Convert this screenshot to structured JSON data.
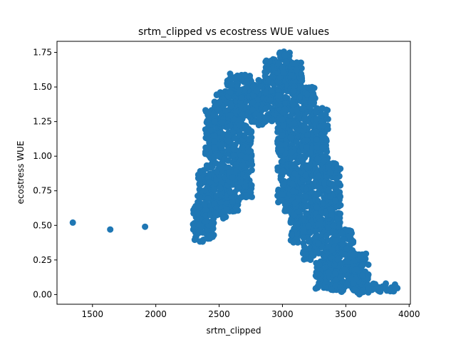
{
  "chart_data": {
    "type": "scatter",
    "title": "srtm_clipped vs ecostress WUE values",
    "xlabel": "srtm_clipped",
    "ylabel": "ecostress WUE",
    "xlim": [
      1220,
      4010
    ],
    "ylim": [
      -0.07,
      1.83
    ],
    "xticks": [
      1500,
      2000,
      2500,
      3000,
      3500,
      4000
    ],
    "yticks": [
      0.0,
      0.25,
      0.5,
      0.75,
      1.0,
      1.25,
      1.5,
      1.75
    ],
    "xtick_labels": [
      "1500",
      "2000",
      "2500",
      "3000",
      "3500",
      "4000"
    ],
    "ytick_labels": [
      "0.00",
      "0.25",
      "0.50",
      "0.75",
      "1.00",
      "1.25",
      "1.50",
      "1.75"
    ],
    "grid": false,
    "marker_color": "#1f77b4",
    "outliers": [
      {
        "x": 1345,
        "y": 0.52
      },
      {
        "x": 1640,
        "y": 0.47
      },
      {
        "x": 1915,
        "y": 0.49
      },
      {
        "x": 3065,
        "y": 0.52
      }
    ],
    "dense_clusters": [
      {
        "x_range": [
          2290,
          2330
        ],
        "y_range": [
          0.39,
          0.64
        ]
      },
      {
        "x_range": [
          2330,
          2390
        ],
        "y_range": [
          0.38,
          0.9
        ]
      },
      {
        "x_range": [
          2390,
          2460
        ],
        "y_range": [
          0.4,
          1.34
        ]
      },
      {
        "x_range": [
          2460,
          2560
        ],
        "y_range": [
          0.55,
          1.47
        ]
      },
      {
        "x_range": [
          2560,
          2660
        ],
        "y_range": [
          0.6,
          1.6
        ]
      },
      {
        "x_range": [
          2660,
          2760
        ],
        "y_range": [
          0.7,
          1.59
        ]
      },
      {
        "x_range": [
          2760,
          2860
        ],
        "y_range": [
          1.22,
          1.55
        ]
      },
      {
        "x_range": [
          2860,
          2960
        ],
        "y_range": [
          1.25,
          1.7
        ]
      },
      {
        "x_range": [
          2960,
          3060
        ],
        "y_range": [
          0.6,
          1.76
        ]
      },
      {
        "x_range": [
          3060,
          3160
        ],
        "y_range": [
          0.37,
          1.68
        ]
      },
      {
        "x_range": [
          3160,
          3260
        ],
        "y_range": [
          0.25,
          1.5
        ]
      },
      {
        "x_range": [
          3260,
          3360
        ],
        "y_range": [
          0.04,
          1.35
        ]
      },
      {
        "x_range": [
          3360,
          3460
        ],
        "y_range": [
          0.03,
          0.95
        ]
      },
      {
        "x_range": [
          3460,
          3560
        ],
        "y_range": [
          0.02,
          0.47
        ]
      },
      {
        "x_range": [
          3560,
          3680
        ],
        "y_range": [
          0.0,
          0.3
        ]
      },
      {
        "x_range": [
          3680,
          3920
        ],
        "y_range": [
          0.02,
          0.08
        ]
      }
    ]
  }
}
